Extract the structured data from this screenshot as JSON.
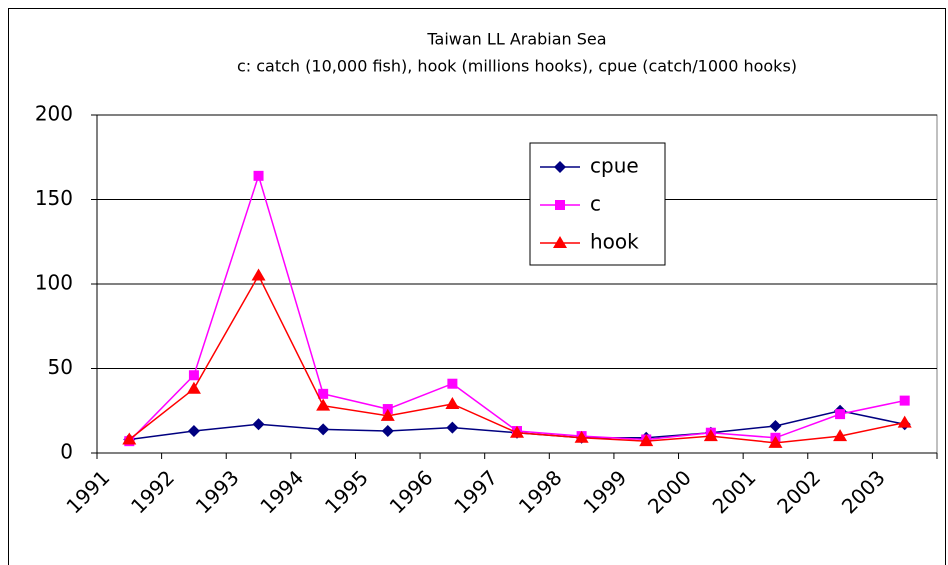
{
  "chart_data": {
    "type": "line",
    "title": "Taiwan LL Arabian Sea",
    "subtitle": "c: catch (10,000 fish), hook (millions hooks), cpue (catch/1000 hooks)",
    "categories": [
      "1991",
      "1992",
      "1993",
      "1994",
      "1995",
      "1996",
      "1997",
      "1998",
      "1999",
      "2000",
      "2001",
      "2002",
      "2003"
    ],
    "series": [
      {
        "name": "cpue",
        "color": "#000080",
        "marker": "diamond",
        "values": [
          8,
          13,
          17,
          14,
          13,
          15,
          12,
          9,
          9,
          12,
          16,
          25,
          17
        ]
      },
      {
        "name": "c",
        "color": "#ff00ff",
        "marker": "square",
        "values": [
          7,
          46,
          164,
          35,
          26,
          41,
          13,
          10,
          8,
          12,
          9,
          23,
          31
        ]
      },
      {
        "name": "hook",
        "color": "#ff0000",
        "marker": "triangle",
        "values": [
          8,
          38,
          105,
          28,
          22,
          29,
          12,
          9,
          7,
          10,
          6,
          10,
          18
        ]
      }
    ],
    "ylim": [
      0,
      200
    ],
    "yticks": [
      0,
      50,
      100,
      150,
      200
    ],
    "grid": true
  }
}
